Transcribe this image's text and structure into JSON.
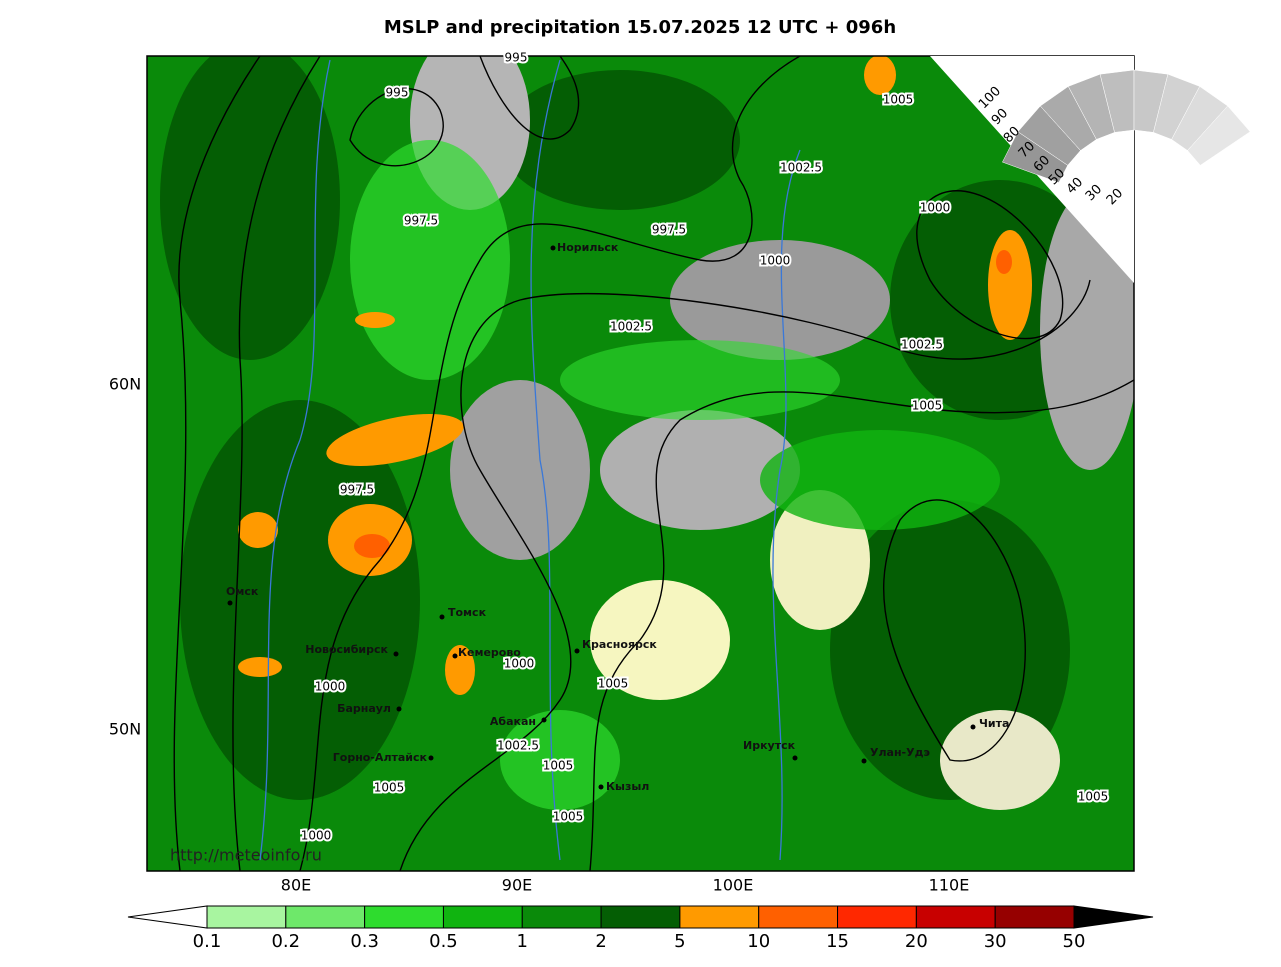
{
  "title": "MSLP and precipitation 15.07.2025 12 UTC + 096h",
  "latitude_labels": [
    "60N",
    "50N"
  ],
  "longitude_labels": [
    "80E",
    "90E",
    "100E",
    "110E"
  ],
  "cities": [
    "Омск",
    "Томск",
    "Новосибирск",
    "Кемерово",
    "Красноярск",
    "Барнаул",
    "Абакан",
    "Горно-Алтайск",
    "Кызыл",
    "Иркутск",
    "Улан-Удэ",
    "Чита",
    "Норильск"
  ],
  "isobar_labels": [
    "995",
    "995",
    "1005",
    "1002.5",
    "997.5",
    "997.5",
    "1000",
    "1000",
    "1002.5",
    "1002.5",
    "1005",
    "997.5",
    "1000",
    "1000",
    "1005",
    "1002.5",
    "1005",
    "1005",
    "1005",
    "1000",
    "1005"
  ],
  "cloud_scale_labels": [
    "100",
    "90",
    "80",
    "70",
    "60",
    "50",
    "40",
    "30",
    "20"
  ],
  "source_url": "http://meteoinfo.ru",
  "precipitation_legend": {
    "labels": [
      "0.1",
      "0.2",
      "0.3",
      "0.5",
      "1",
      "2",
      "5",
      "10",
      "15",
      "20",
      "30",
      "50"
    ],
    "colors": [
      "#a8f5a0",
      "#6ee86a",
      "#2edc2e",
      "#10b410",
      "#0a8a0a",
      "#045e04",
      "#ff9a00",
      "#ff6000",
      "#ff2800",
      "#c80000",
      "#960000"
    ]
  }
}
